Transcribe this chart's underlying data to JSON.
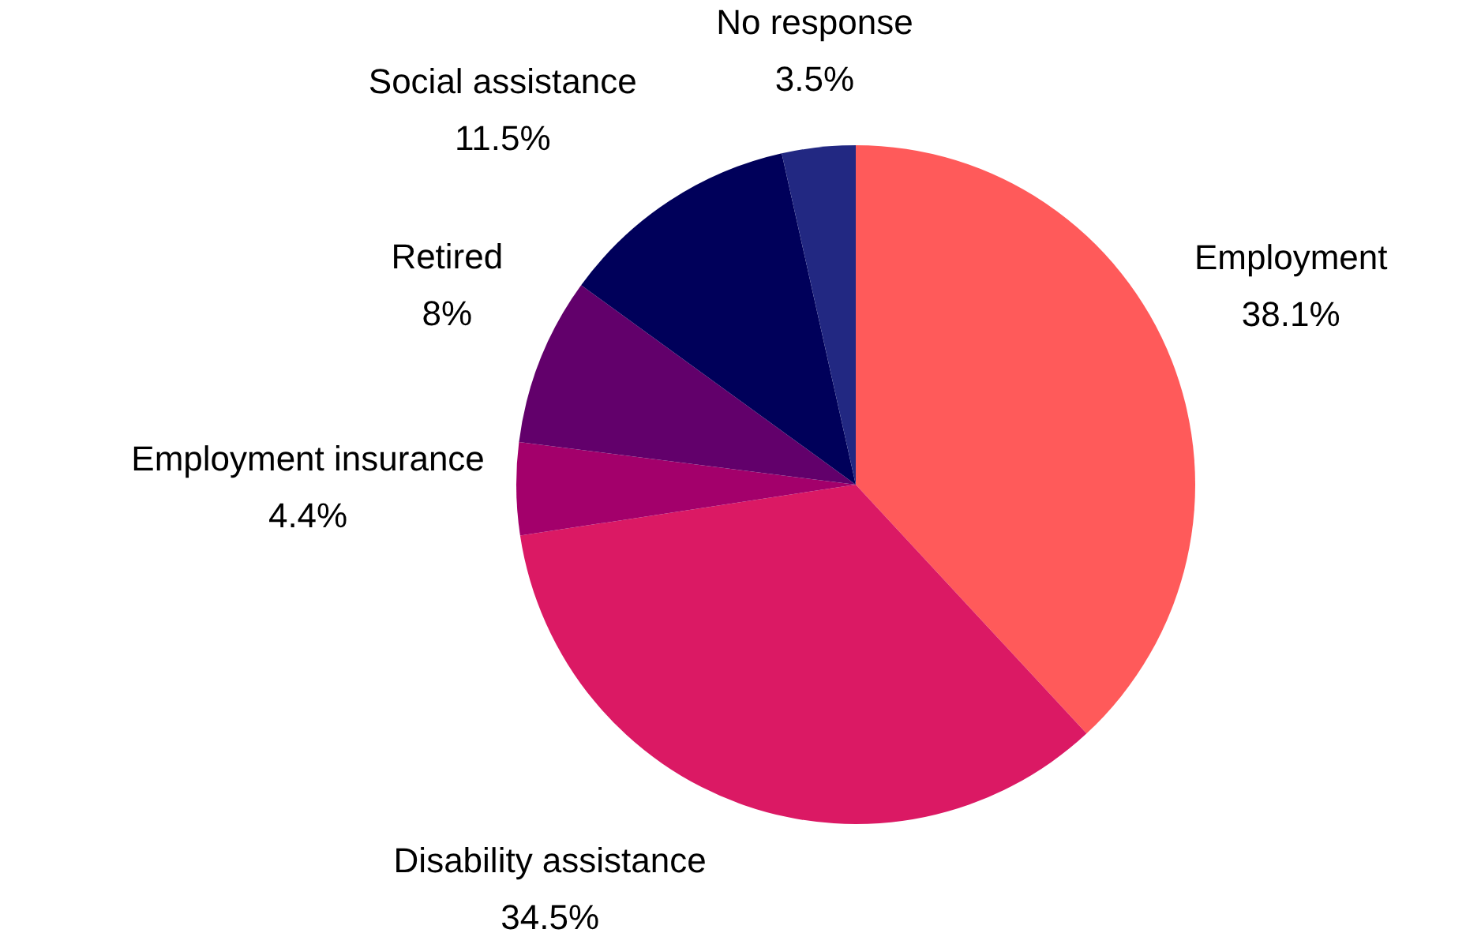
{
  "chart_data": {
    "type": "pie",
    "categories": [
      "Employment",
      "Disability assistance",
      "Employment insurance",
      "Retired",
      "Social assistance",
      "No response"
    ],
    "values": [
      38.1,
      34.5,
      4.4,
      8,
      11.5,
      3.5
    ],
    "value_labels": [
      "38.1%",
      "34.5%",
      "4.4%",
      "8%",
      "11.5%",
      "3.5%"
    ],
    "colors": [
      "#ff5a5a",
      "#db1964",
      "#a3006b",
      "#62006b",
      "#00005a",
      "#222882"
    ]
  }
}
